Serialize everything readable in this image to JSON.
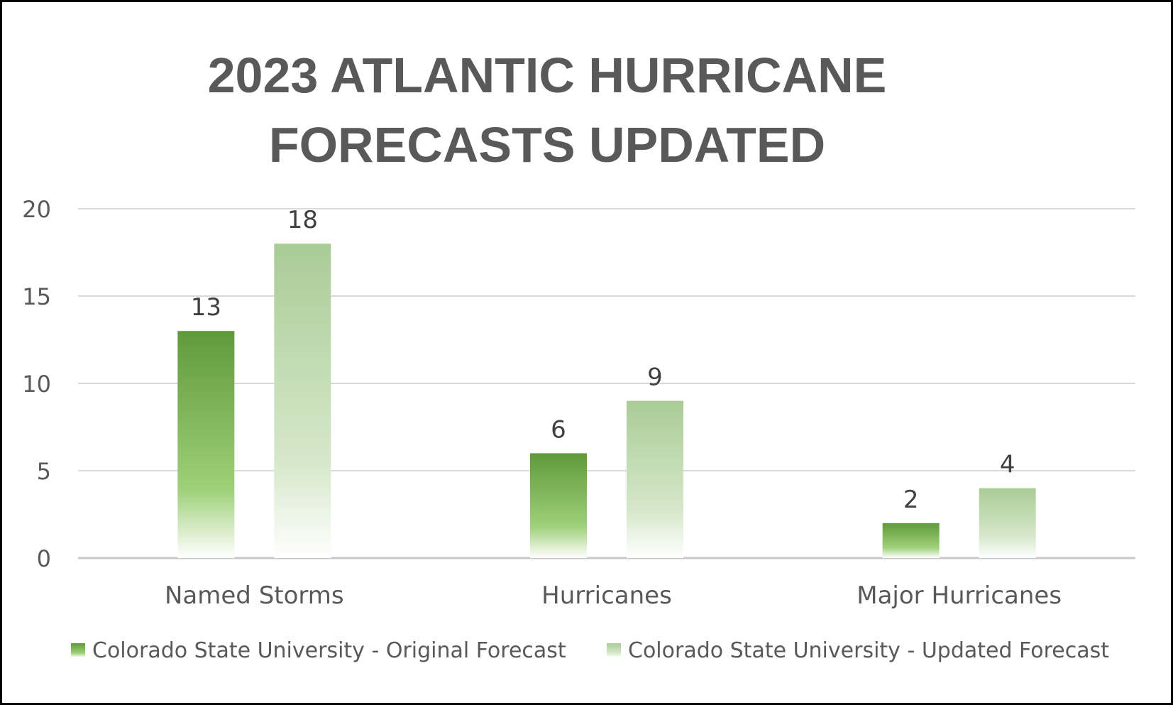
{
  "chart_data": {
    "type": "bar",
    "title_lines": [
      "2023 ATLANTIC HURRICANE",
      "FORECASTS UPDATED"
    ],
    "categories": [
      "Named Storms",
      "Hurricanes",
      "Major Hurricanes"
    ],
    "series": [
      {
        "name": "Colorado State University - Original Forecast",
        "values": [
          13,
          6,
          2
        ],
        "color": "#5f9a3a",
        "fade_color": "#9fd07a"
      },
      {
        "name": "Colorado State University - Updated Forecast",
        "values": [
          18,
          9,
          4
        ],
        "color": "#a9cc96",
        "fade_color": "#d6e8cb"
      }
    ],
    "ylim": [
      0,
      20
    ],
    "yticks": [
      0,
      5,
      10,
      15,
      20
    ],
    "grid": true,
    "data_labels": true,
    "legend_position": "bottom",
    "colors": {
      "title": "#595959",
      "axis_text": "#595959",
      "gridline": "#d9d9d9",
      "border": "#000000"
    }
  }
}
